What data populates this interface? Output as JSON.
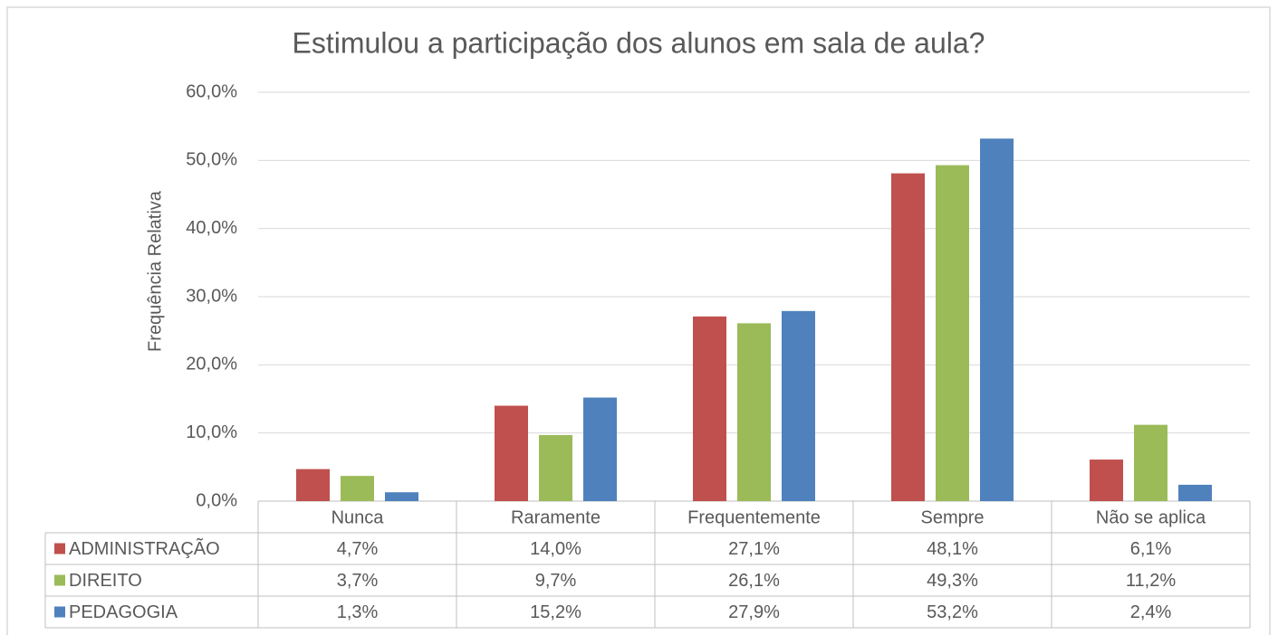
{
  "chart_data": {
    "type": "bar",
    "title": "Estimulou a participação dos alunos em sala de aula?",
    "y_label": "Frequência Relativa",
    "categories": [
      "Nunca",
      "Raramente",
      "Frequentemente",
      "Sempre",
      "Não se aplica"
    ],
    "series": [
      {
        "name": "ADMINISTRAÇÃO",
        "color": "#c0504d",
        "values": [
          4.7,
          14.0,
          27.1,
          48.1,
          6.1
        ],
        "value_labels": [
          "4,7%",
          "14,0%",
          "27,1%",
          "48,1%",
          "6,1%"
        ]
      },
      {
        "name": "DIREITO",
        "color": "#9bbb59",
        "values": [
          3.7,
          9.7,
          26.1,
          49.3,
          11.2
        ],
        "value_labels": [
          "3,7%",
          "9,7%",
          "26,1%",
          "49,3%",
          "11,2%"
        ]
      },
      {
        "name": "PEDAGOGIA",
        "color": "#4f81bd",
        "values": [
          1.3,
          15.2,
          27.9,
          53.2,
          2.4
        ],
        "value_labels": [
          "1,3%",
          "15,2%",
          "27,9%",
          "53,2%",
          "2,4%"
        ]
      }
    ],
    "ylim": [
      0,
      60
    ],
    "yticks": [
      {
        "value": 0,
        "label": "0,0%"
      },
      {
        "value": 10,
        "label": "10,0%"
      },
      {
        "value": 20,
        "label": "20,0%"
      },
      {
        "value": 30,
        "label": "30,0%"
      },
      {
        "value": 40,
        "label": "40,0%"
      },
      {
        "value": 50,
        "label": "50,0%"
      },
      {
        "value": 60,
        "label": "60,0%"
      }
    ],
    "grid": true,
    "legend": "table"
  }
}
